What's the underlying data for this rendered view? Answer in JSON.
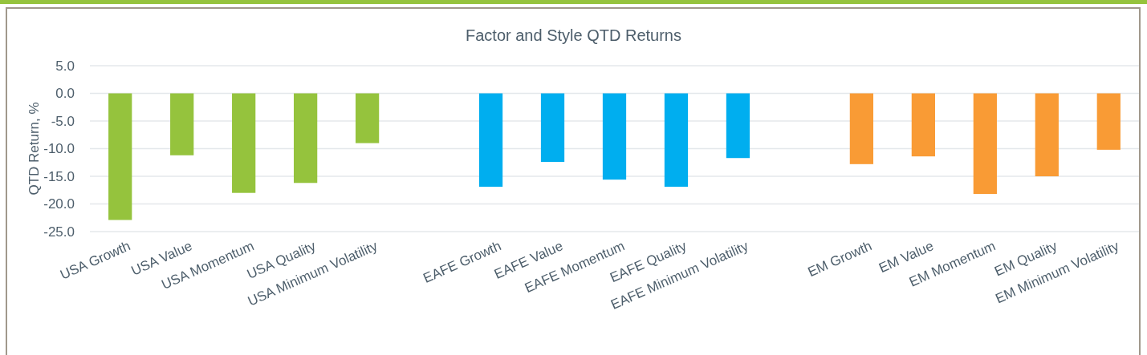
{
  "chart_data": {
    "type": "bar",
    "title": "Factor and Style QTD Returns",
    "ylabel": "QTD Return, %",
    "categories": [
      "USA Growth",
      "USA Value",
      "USA Momentum",
      "USA Quality",
      "USA Minimum Volatility",
      null,
      "EAFE Growth",
      "EAFE Value",
      "EAFE Momentum",
      "EAFE Quality",
      "EAFE Minimum Volatility",
      null,
      "EM Growth",
      "EM Value",
      "EM Momentum",
      "EM Quality",
      "EM Minimum Volatility"
    ],
    "values": [
      -22.9,
      -11.2,
      -18.0,
      -16.2,
      -9.0,
      null,
      -16.9,
      -12.4,
      -15.6,
      -16.9,
      -11.7,
      null,
      -12.8,
      -11.4,
      -18.2,
      -15.0,
      -10.2
    ],
    "colors": [
      "#95c33d",
      "#95c33d",
      "#95c33d",
      "#95c33d",
      "#95c33d",
      null,
      "#00aeef",
      "#00aeef",
      "#00aeef",
      "#00aeef",
      "#00aeef",
      null,
      "#f99b35",
      "#f99b35",
      "#f99b35",
      "#f99b35",
      "#f99b35"
    ],
    "ylim": [
      -25,
      5
    ],
    "yticks": [
      {
        "value": 5,
        "label": "5.0"
      },
      {
        "value": 0,
        "label": "0.0"
      },
      {
        "value": -5,
        "label": "-5.0"
      },
      {
        "value": -10,
        "label": "-10.0"
      },
      {
        "value": -15,
        "label": "-15.0"
      },
      {
        "value": -20,
        "label": "-20.0"
      },
      {
        "value": -25,
        "label": "-25.0"
      }
    ],
    "grid": "y"
  }
}
